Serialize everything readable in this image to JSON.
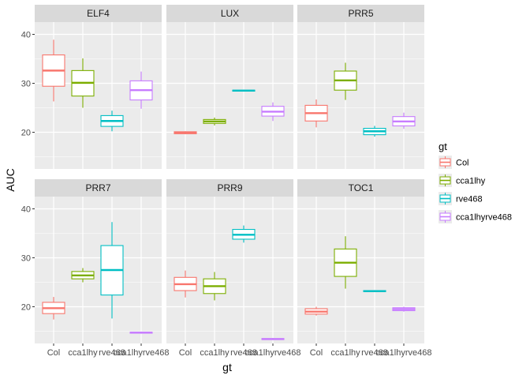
{
  "chart_data": {
    "type": "boxplot",
    "xlabel": "gt",
    "ylabel": "AUC",
    "categories": [
      "Col",
      "cca1lhy",
      "rve468",
      "cca1lhyrve468"
    ],
    "x_tick_labels": [
      "Col",
      "cca1lhy",
      "rve468",
      "cca1lhyrve468"
    ],
    "y_ticks": [
      20,
      30,
      40
    ],
    "y_tick_labels": [
      "20",
      "30",
      "40"
    ],
    "legend": {
      "title": "gt",
      "position": "right",
      "entries": [
        {
          "label": "Col",
          "color": "#F8766D"
        },
        {
          "label": "cca1lhy",
          "color": "#7CAE00"
        },
        {
          "label": "rve468",
          "color": "#00BFC4"
        },
        {
          "label": "cca1lhyrve468",
          "color": "#C77CFF"
        }
      ]
    },
    "panel_bg": "#EBEBEB",
    "strip_bg": "#D9D9D9",
    "facets": [
      {
        "name": "ELF4",
        "ylim": [
          12.5,
          42.5
        ],
        "boxes": [
          {
            "gt": "Col",
            "min": 26.3,
            "q1": 29.4,
            "median": 32.6,
            "q3": 35.8,
            "max": 38.9
          },
          {
            "gt": "cca1lhy",
            "min": 25.0,
            "q1": 27.4,
            "median": 30.1,
            "q3": 32.6,
            "max": 35.1
          },
          {
            "gt": "rve468",
            "min": 20.2,
            "q1": 21.2,
            "median": 22.3,
            "q3": 23.4,
            "max": 24.4
          },
          {
            "gt": "cca1lhyrve468",
            "min": 24.8,
            "q1": 26.6,
            "median": 28.6,
            "q3": 30.5,
            "max": 32.4
          }
        ]
      },
      {
        "name": "LUX",
        "ylim": [
          12.5,
          42.5
        ],
        "boxes": [
          {
            "gt": "Col",
            "min": 19.6,
            "q1": 19.7,
            "median": 19.9,
            "q3": 20.1,
            "max": 20.2
          },
          {
            "gt": "cca1lhy",
            "min": 21.4,
            "q1": 21.8,
            "median": 22.2,
            "q3": 22.6,
            "max": 23.0
          },
          {
            "gt": "rve468",
            "min": 28.3,
            "q1": 28.4,
            "median": 28.5,
            "q3": 28.6,
            "max": 28.7
          },
          {
            "gt": "cca1lhyrve468",
            "min": 22.3,
            "q1": 23.3,
            "median": 24.2,
            "q3": 25.3,
            "max": 26.1
          }
        ]
      },
      {
        "name": "PRR5",
        "ylim": [
          12.5,
          42.5
        ],
        "boxes": [
          {
            "gt": "Col",
            "min": 21.0,
            "q1": 22.3,
            "median": 23.9,
            "q3": 25.5,
            "max": 26.7
          },
          {
            "gt": "cca1lhy",
            "min": 26.6,
            "q1": 28.6,
            "median": 30.6,
            "q3": 32.5,
            "max": 34.2
          },
          {
            "gt": "rve468",
            "min": 19.1,
            "q1": 19.5,
            "median": 20.2,
            "q3": 20.8,
            "max": 21.3
          },
          {
            "gt": "cca1lhyrve468",
            "min": 20.7,
            "q1": 21.3,
            "median": 22.2,
            "q3": 23.2,
            "max": 24.0
          }
        ]
      },
      {
        "name": "PRR7",
        "ylim": [
          12.5,
          42.5
        ],
        "boxes": [
          {
            "gt": "Col",
            "min": 17.4,
            "q1": 18.6,
            "median": 19.7,
            "q3": 20.9,
            "max": 22.0
          },
          {
            "gt": "cca1lhy",
            "min": 25.0,
            "q1": 25.7,
            "median": 26.4,
            "q3": 27.2,
            "max": 27.9
          },
          {
            "gt": "rve468",
            "min": 17.6,
            "q1": 22.4,
            "median": 27.5,
            "q3": 32.5,
            "max": 37.3
          },
          {
            "gt": "cca1lhyrve468",
            "min": 14.5,
            "q1": 14.6,
            "median": 14.7,
            "q3": 14.8,
            "max": 14.9
          }
        ]
      },
      {
        "name": "PRR9",
        "ylim": [
          12.5,
          42.5
        ],
        "boxes": [
          {
            "gt": "Col",
            "min": 21.9,
            "q1": 23.3,
            "median": 24.6,
            "q3": 26.0,
            "max": 27.4
          },
          {
            "gt": "cca1lhy",
            "min": 21.3,
            "q1": 22.7,
            "median": 24.2,
            "q3": 25.7,
            "max": 27.1
          },
          {
            "gt": "rve468",
            "min": 33.1,
            "q1": 33.8,
            "median": 34.7,
            "q3": 35.8,
            "max": 36.6
          },
          {
            "gt": "cca1lhyrve468",
            "min": 13.2,
            "q1": 13.3,
            "median": 13.4,
            "q3": 13.5,
            "max": 13.6
          }
        ]
      },
      {
        "name": "TOC1",
        "ylim": [
          12.5,
          42.5
        ],
        "boxes": [
          {
            "gt": "Col",
            "min": 18.2,
            "q1": 18.5,
            "median": 19.0,
            "q3": 19.6,
            "max": 20.0
          },
          {
            "gt": "cca1lhy",
            "min": 23.7,
            "q1": 26.2,
            "median": 29.0,
            "q3": 31.8,
            "max": 34.4
          },
          {
            "gt": "rve468",
            "min": 23.0,
            "q1": 23.1,
            "median": 23.2,
            "q3": 23.3,
            "max": 23.4
          },
          {
            "gt": "cca1lhyrve468",
            "min": 19.0,
            "q1": 19.2,
            "median": 19.5,
            "q3": 19.8,
            "max": 20.0
          }
        ]
      }
    ]
  }
}
